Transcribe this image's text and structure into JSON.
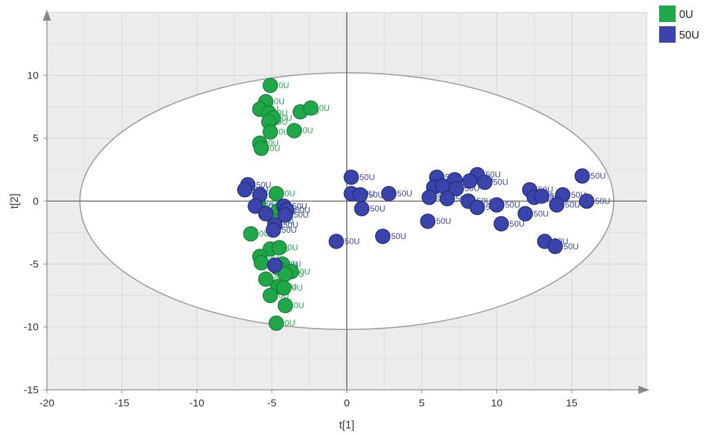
{
  "chart_data": {
    "type": "scatter",
    "xlabel": "t[1]",
    "ylabel": "t[2]",
    "xlim": [
      -20,
      20
    ],
    "ylim": [
      -15,
      15
    ],
    "x_ticks": [
      -20,
      -15,
      -10,
      -5,
      0,
      5,
      10,
      15
    ],
    "y_ticks": [
      -15,
      -10,
      -5,
      0,
      5,
      10
    ],
    "x_tick_labels": [
      "-20",
      "-15",
      "-10",
      "-5",
      "0",
      "5",
      "10",
      "15"
    ],
    "y_tick_labels": [
      "-15",
      "-10",
      "-5",
      "0",
      "5",
      "10"
    ],
    "grid": true,
    "confidence_ellipse": {
      "center": [
        0,
        0
      ],
      "radius_x": 17.8,
      "radius_y": 10.2
    },
    "legend": {
      "placement": "top-right, outside plot"
    },
    "series": [
      {
        "name": "0U",
        "color": "#1fa74a",
        "point_label": "0U",
        "points": [
          [
            -5.1,
            9.2
          ],
          [
            -5.4,
            7.9
          ],
          [
            -5.8,
            7.3
          ],
          [
            -5.2,
            7.0
          ],
          [
            -4.9,
            6.6
          ],
          [
            -3.1,
            7.1
          ],
          [
            -2.4,
            7.4
          ],
          [
            -5.2,
            6.3
          ],
          [
            -3.5,
            5.6
          ],
          [
            -5.1,
            5.5
          ],
          [
            -5.8,
            4.6
          ],
          [
            -5.7,
            4.2
          ],
          [
            -4.7,
            0.6
          ],
          [
            -5.9,
            -0.2
          ],
          [
            -4.6,
            -0.8
          ],
          [
            -4.8,
            -1.6
          ],
          [
            -6.4,
            -2.6
          ],
          [
            -5.1,
            -3.8
          ],
          [
            -4.5,
            -3.7
          ],
          [
            -5.8,
            -4.4
          ],
          [
            -5.7,
            -4.9
          ],
          [
            -4.3,
            -5.0
          ],
          [
            -4.6,
            -5.3
          ],
          [
            -3.7,
            -5.6
          ],
          [
            -4.1,
            -5.8
          ],
          [
            -5.4,
            -6.2
          ],
          [
            -4.6,
            -6.8
          ],
          [
            -4.2,
            -6.9
          ],
          [
            -5.1,
            -7.5
          ],
          [
            -4.1,
            -8.3
          ],
          [
            -4.7,
            -9.7
          ]
        ]
      },
      {
        "name": "50U",
        "color": "#3a44aa",
        "point_label": "50U",
        "points": [
          [
            -6.6,
            1.3
          ],
          [
            -6.8,
            0.9
          ],
          [
            -5.8,
            0.5
          ],
          [
            -6.1,
            -0.4
          ],
          [
            -5.4,
            -1.0
          ],
          [
            -4.2,
            -0.4
          ],
          [
            -4.0,
            -0.7
          ],
          [
            -4.1,
            -1.1
          ],
          [
            -4.8,
            -1.9
          ],
          [
            -4.9,
            -2.3
          ],
          [
            -4.8,
            -5.1
          ],
          [
            0.3,
            1.9
          ],
          [
            0.3,
            0.6
          ],
          [
            0.9,
            0.5
          ],
          [
            2.8,
            0.6
          ],
          [
            1.0,
            -0.6
          ],
          [
            -0.7,
            -3.2
          ],
          [
            2.4,
            -2.8
          ],
          [
            6.0,
            1.9
          ],
          [
            7.2,
            1.7
          ],
          [
            8.7,
            2.1
          ],
          [
            9.2,
            1.5
          ],
          [
            5.8,
            1.1
          ],
          [
            6.4,
            1.2
          ],
          [
            7.3,
            1.0
          ],
          [
            8.2,
            1.6
          ],
          [
            5.5,
            0.3
          ],
          [
            6.7,
            0.2
          ],
          [
            8.1,
            0.0
          ],
          [
            8.7,
            -0.5
          ],
          [
            10.0,
            -0.3
          ],
          [
            5.4,
            -1.6
          ],
          [
            10.3,
            -1.8
          ],
          [
            12.2,
            0.9
          ],
          [
            12.5,
            0.3
          ],
          [
            13.0,
            0.4
          ],
          [
            14.4,
            0.5
          ],
          [
            15.7,
            2.0
          ],
          [
            14.0,
            -0.3
          ],
          [
            11.9,
            -1.0
          ],
          [
            16.0,
            0.0
          ],
          [
            13.2,
            -3.2
          ],
          [
            13.9,
            -3.6
          ]
        ]
      }
    ]
  }
}
